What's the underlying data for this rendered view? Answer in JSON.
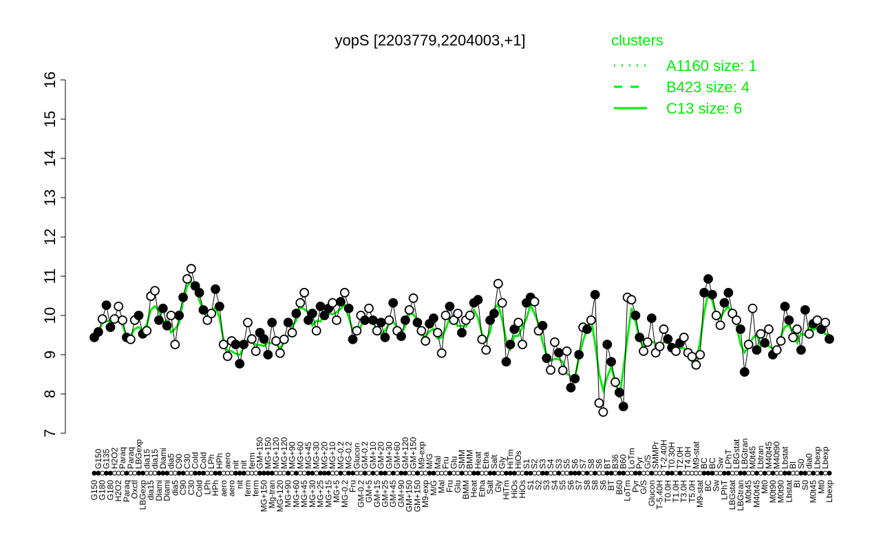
{
  "chart_data": {
    "type": "scatter",
    "title": "yopS [2203779,2204003,+1]",
    "xlabel": "",
    "ylabel": "",
    "ylim": [
      7,
      16
    ],
    "yticks": [
      "7",
      "8",
      "9",
      "10",
      "11",
      "12",
      "13",
      "14",
      "15",
      "16"
    ],
    "grid": false,
    "legend": {
      "title": "clusters",
      "placement": "top-right",
      "entries": [
        {
          "label": "A1160 size: 1",
          "style": "dotted"
        },
        {
          "label": "B423 size: 4",
          "style": "dashed"
        },
        {
          "label": "C13 size: 6",
          "style": "solid"
        }
      ]
    },
    "colors": {
      "cluster_line": "#00ee00",
      "points": "#000000"
    },
    "points": [
      [
        "G150",
        9.44,
        1
      ],
      [
        "G150",
        9.58,
        1
      ],
      [
        "G180",
        9.91,
        0
      ],
      [
        "G135",
        10.26,
        1
      ],
      [
        "G180",
        9.7,
        1
      ],
      [
        "H2O2",
        9.91,
        0
      ],
      [
        "H2O2",
        10.23,
        0
      ],
      [
        "Paraq",
        9.88,
        0
      ],
      [
        "Paraq",
        9.44,
        1
      ],
      [
        "Paraq",
        9.39,
        0
      ],
      [
        "Oxctl",
        9.88,
        0
      ],
      [
        "LBGexp",
        10.0,
        1
      ],
      [
        "LBGexp",
        9.53,
        1
      ],
      [
        "dia15",
        9.61,
        0
      ],
      [
        "dia15",
        10.49,
        0
      ],
      [
        "dia15",
        10.63,
        0
      ],
      [
        "Diami",
        9.88,
        1
      ],
      [
        "Diami",
        10.18,
        1
      ],
      [
        "Diami",
        9.74,
        1
      ],
      [
        "dia5",
        10.0,
        0
      ],
      [
        "dia5",
        9.26,
        0
      ],
      [
        "C90",
        10.0,
        1
      ],
      [
        "C90",
        10.46,
        1
      ],
      [
        "C30",
        10.93,
        0
      ],
      [
        "C30",
        11.19,
        0
      ],
      [
        "Cold",
        10.75,
        1
      ],
      [
        "Cold",
        10.58,
        1
      ],
      [
        "Cold",
        10.14,
        1
      ],
      [
        "LPh",
        9.88,
        0
      ],
      [
        "LPh",
        10.05,
        0
      ],
      [
        "HPh",
        10.67,
        1
      ],
      [
        "HPh",
        10.23,
        1
      ],
      [
        "aero",
        9.26,
        0
      ],
      [
        "aero",
        8.96,
        0
      ],
      [
        "aero",
        9.35,
        0
      ],
      [
        "nit",
        9.26,
        1
      ],
      [
        "nit",
        8.77,
        1
      ],
      [
        "nit",
        9.26,
        1
      ],
      [
        "ferm",
        9.82,
        0
      ],
      [
        "ferm",
        9.4,
        0
      ],
      [
        "ferm",
        9.09,
        0
      ],
      [
        "GM+150",
        9.56,
        1
      ],
      [
        "MG+150",
        9.4,
        1
      ],
      [
        "MG+150",
        9.0,
        1
      ],
      [
        "Mg-tran",
        9.82,
        1
      ],
      [
        "MG+120",
        9.35,
        0
      ],
      [
        "MG+120",
        9.04,
        0
      ],
      [
        "MG+120",
        9.39,
        0
      ],
      [
        "MG+90",
        9.82,
        1
      ],
      [
        "MG+90",
        9.56,
        0
      ],
      [
        "MG+60",
        10.05,
        1
      ],
      [
        "MG+60",
        10.32,
        0
      ],
      [
        "MG+45",
        10.58,
        0
      ],
      [
        "MG+45",
        9.88,
        1
      ],
      [
        "MG+30",
        10.05,
        1
      ],
      [
        "MG+30",
        9.61,
        0
      ],
      [
        "MG+25",
        10.23,
        1
      ],
      [
        "MG+20",
        10.0,
        1
      ],
      [
        "MG+15",
        10.18,
        1
      ],
      [
        "MG+10",
        10.32,
        0
      ],
      [
        "MG+5",
        9.88,
        0
      ],
      [
        "MG-0.2",
        10.35,
        1
      ],
      [
        "MG-0.2",
        10.58,
        0
      ],
      [
        "MG-0.2",
        10.18,
        1
      ],
      [
        "Fru",
        9.39,
        1
      ],
      [
        "Glucon",
        9.61,
        0
      ],
      [
        "GM-0.2",
        10.0,
        0
      ],
      [
        "GM-0.2",
        9.88,
        1
      ],
      [
        "GM+5",
        10.18,
        0
      ],
      [
        "GM+10",
        9.88,
        1
      ],
      [
        "GM+15",
        9.61,
        0
      ],
      [
        "GM+20",
        9.82,
        1
      ],
      [
        "GM+25",
        9.44,
        1
      ],
      [
        "GM+30",
        9.88,
        0
      ],
      [
        "GM+45",
        10.32,
        1
      ],
      [
        "GM+60",
        9.61,
        0
      ],
      [
        "GM+90",
        9.47,
        1
      ],
      [
        "GM+120",
        9.88,
        1
      ],
      [
        "GM+150",
        10.14,
        0
      ],
      [
        "GM+150",
        10.44,
        0
      ],
      [
        "GM+150",
        9.82,
        1
      ],
      [
        "M9-exp",
        9.61,
        0
      ],
      [
        "M9-exp",
        9.35,
        0
      ],
      [
        "M/G",
        9.79,
        1
      ],
      [
        "M/G",
        9.93,
        1
      ],
      [
        "Mal",
        9.56,
        0
      ],
      [
        "Mal",
        9.04,
        0
      ],
      [
        "Fru",
        10.0,
        0
      ],
      [
        "Fru",
        10.23,
        1
      ],
      [
        "Glu",
        9.88,
        0
      ],
      [
        "Glu",
        10.05,
        0
      ],
      [
        "SMM",
        9.56,
        1
      ],
      [
        "BMM",
        9.88,
        0
      ],
      [
        "BMM",
        10.0,
        0
      ],
      [
        "Heat",
        10.32,
        1
      ],
      [
        "Heat",
        10.4,
        1
      ],
      [
        "Etha",
        9.39,
        0
      ],
      [
        "Etha",
        9.12,
        0
      ],
      [
        "Salt",
        9.88,
        1
      ],
      [
        "Salt",
        10.05,
        1
      ],
      [
        "Gly",
        10.81,
        0
      ],
      [
        "Gly",
        10.32,
        0
      ],
      [
        "HiTm",
        8.82,
        1
      ],
      [
        "HiTm",
        9.26,
        1
      ],
      [
        "HiOs",
        9.65,
        1
      ],
      [
        "HiOs",
        9.82,
        0
      ],
      [
        "HiOs",
        9.26,
        0
      ],
      [
        "S1",
        10.32,
        1
      ],
      [
        "S1",
        10.46,
        1
      ],
      [
        "S2",
        10.35,
        0
      ],
      [
        "S2",
        9.61,
        0
      ],
      [
        "S3",
        9.74,
        1
      ],
      [
        "S3",
        8.91,
        1
      ],
      [
        "S4",
        8.61,
        0
      ],
      [
        "S4",
        9.32,
        0
      ],
      [
        "S3",
        9.05,
        1
      ],
      [
        "S5",
        8.6,
        0
      ],
      [
        "S5",
        9.09,
        0
      ],
      [
        "S6",
        8.16,
        1
      ],
      [
        "S6",
        8.39,
        1
      ],
      [
        "S7",
        9.0,
        1
      ],
      [
        "S7",
        9.7,
        0
      ],
      [
        "S8",
        9.65,
        1
      ],
      [
        "S8",
        9.88,
        0
      ],
      [
        "S8",
        10.53,
        1
      ],
      [
        "S6",
        7.77,
        0
      ],
      [
        "S6",
        7.54,
        0
      ],
      [
        "BT",
        9.26,
        1
      ],
      [
        "BT",
        8.82,
        1
      ],
      [
        "B36",
        8.3,
        0
      ],
      [
        "B60",
        8.04,
        1
      ],
      [
        "B60",
        7.68,
        1
      ],
      [
        "LoTm",
        10.46,
        0
      ],
      [
        "LoTm",
        10.4,
        0
      ],
      [
        "Pyr",
        10.0,
        1
      ],
      [
        "Pyr",
        9.44,
        1
      ],
      [
        "G/S",
        9.09,
        0
      ],
      [
        "G/S",
        9.32,
        0
      ],
      [
        "Glucon",
        9.93,
        1
      ],
      [
        "SMMPr",
        9.05,
        0
      ],
      [
        "T-5.40H",
        9.21,
        0
      ],
      [
        "T-2.40H",
        9.65,
        0
      ],
      [
        "T0.0H",
        9.4,
        1
      ],
      [
        "T0.30H",
        9.18,
        1
      ],
      [
        "T1.0H",
        9.09,
        0
      ],
      [
        "T2.0H",
        9.3,
        1
      ],
      [
        "T3.0H",
        9.44,
        0
      ],
      [
        "T4.0H",
        9.05,
        0
      ],
      [
        "T5.0H",
        8.95,
        0
      ],
      [
        "M9-stat",
        8.74,
        0
      ],
      [
        "M9-stat",
        9.0,
        0
      ],
      [
        "BC",
        10.58,
        1
      ],
      [
        "BC",
        10.93,
        1
      ],
      [
        "BC",
        10.53,
        1
      ],
      [
        "Sw",
        10.0,
        0
      ],
      [
        "Sw",
        9.75,
        0
      ],
      [
        "LPhT",
        10.32,
        1
      ],
      [
        "LPhT",
        10.58,
        1
      ],
      [
        "LBGstat",
        10.05,
        0
      ],
      [
        "LBGstat",
        9.88,
        0
      ],
      [
        "LBGtran",
        9.65,
        1
      ],
      [
        "LBGtran",
        8.56,
        1
      ],
      [
        "M0t45",
        9.26,
        0
      ],
      [
        "M0t45",
        10.18,
        0
      ],
      [
        "M40t45",
        9.12,
        1
      ],
      [
        "Lbtran",
        9.53,
        0
      ],
      [
        "Mt0",
        9.3,
        1
      ],
      [
        "M40t45",
        9.65,
        0
      ],
      [
        "M0t90",
        9.0,
        1
      ],
      [
        "M40t90",
        9.12,
        0
      ],
      [
        "M0t90",
        9.35,
        0
      ],
      [
        "Lbstat",
        10.23,
        1
      ],
      [
        "Lbstat",
        9.88,
        1
      ],
      [
        "BI",
        9.44,
        0
      ],
      [
        "BI",
        9.65,
        0
      ],
      [
        "S0",
        9.12,
        1
      ],
      [
        "S0",
        10.14,
        1
      ],
      [
        "dia0",
        9.53,
        0
      ],
      [
        "M0t45",
        9.79,
        1
      ],
      [
        "Lbexp",
        9.88,
        0
      ],
      [
        "Mt0",
        9.65,
        1
      ],
      [
        "Lbexp",
        9.82,
        0
      ],
      [
        "Lbexp",
        9.4,
        1
      ]
    ]
  }
}
